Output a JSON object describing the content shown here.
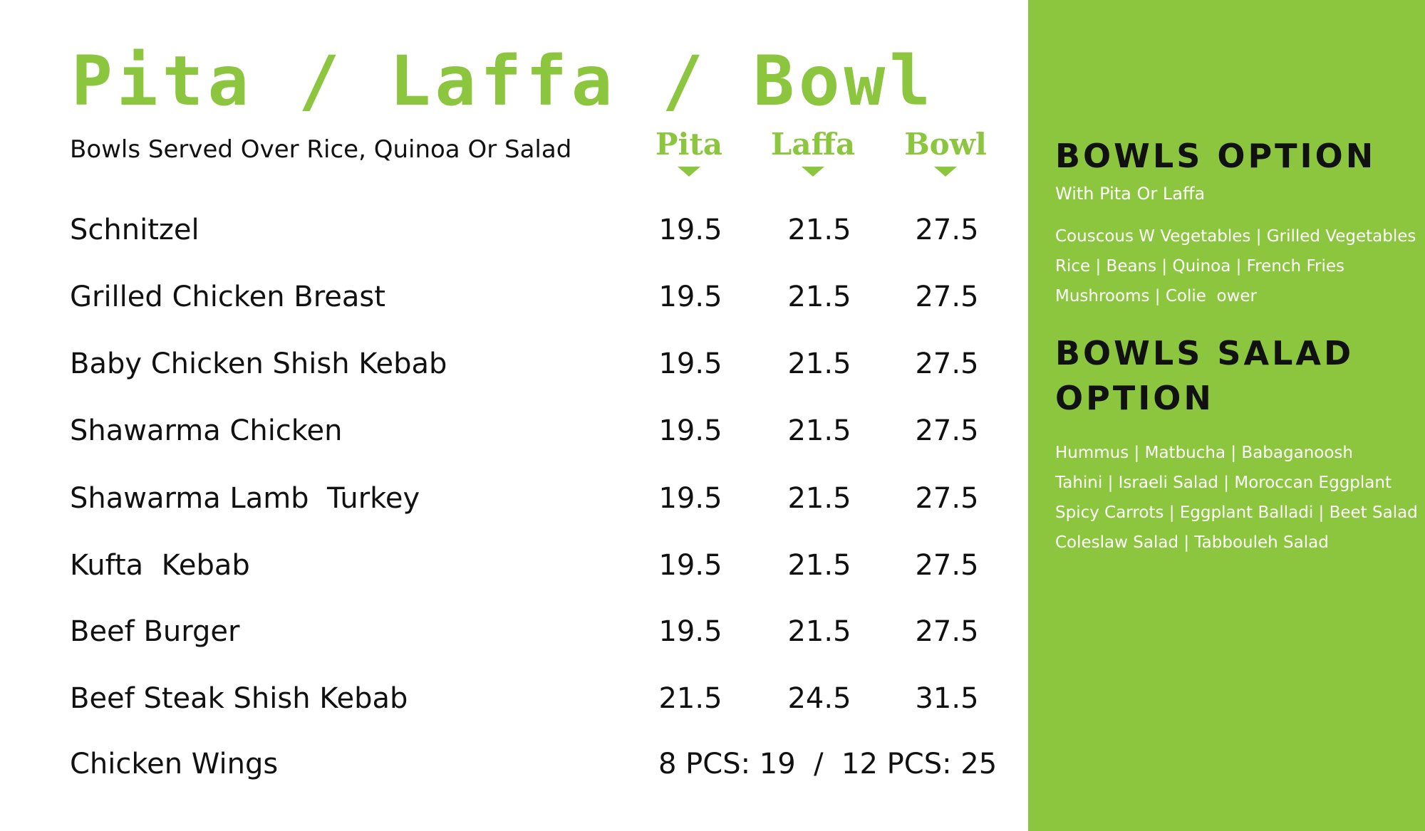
{
  "colors": {
    "accent": "#8cc63f",
    "text": "#111111",
    "panel_text": "#ffffff"
  },
  "menu": {
    "title": "Pita / Laffa / Bowl",
    "subtitle": "Bowls Served Over Rice, Quinoa Or Salad",
    "columns": [
      "Pita",
      "Laffa",
      "Bowl"
    ],
    "items": [
      {
        "name": "Schnitzel",
        "prices": [
          "19.5",
          "21.5",
          "27.5"
        ]
      },
      {
        "name": "Grilled Chicken Breast",
        "prices": [
          "19.5",
          "21.5",
          "27.5"
        ]
      },
      {
        "name": "Baby Chicken Shish Kebab",
        "prices": [
          "19.5",
          "21.5",
          "27.5"
        ]
      },
      {
        "name": "Shawarma Chicken",
        "prices": [
          "19.5",
          "21.5",
          "27.5"
        ]
      },
      {
        "name": "Shawarma Lamb  Turkey",
        "prices": [
          "19.5",
          "21.5",
          "27.5"
        ]
      },
      {
        "name": "Kufta  Kebab",
        "prices": [
          "19.5",
          "21.5",
          "27.5"
        ]
      },
      {
        "name": "Beef Burger",
        "prices": [
          "19.5",
          "21.5",
          "27.5"
        ]
      },
      {
        "name": "Beef Steak Shish Kebab",
        "prices": [
          "21.5",
          "24.5",
          "31.5"
        ]
      }
    ],
    "wings": {
      "name": "Chicken Wings",
      "text": "8 PCS: 19  /  12 PCS: 25"
    }
  },
  "bowls_option": {
    "title": "BOWLS OPTION",
    "subtitle": "With Pita Or Laffa",
    "lines": [
      "Couscous W Vegetables | Grilled Vegetables",
      "Rice | Beans | Quinoa | French Fries",
      "Mushrooms | Colie  ower"
    ]
  },
  "bowls_salad": {
    "title_line1": "BOWLS SALAD",
    "title_line2": "OPTION",
    "lines": [
      "Hummus | Matbucha | Babaganoosh",
      "Tahini | Israeli Salad | Moroccan Eggplant",
      "Spicy Carrots | Eggplant Balladi | Beet Salad",
      "Coleslaw Salad | Tabbouleh Salad"
    ]
  }
}
